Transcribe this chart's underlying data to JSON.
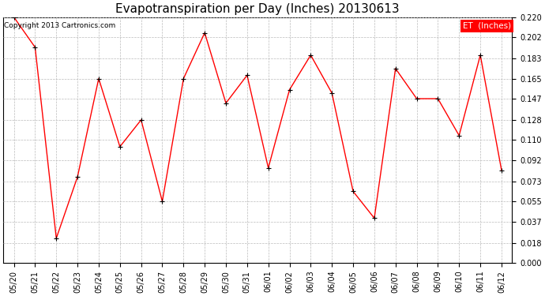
{
  "title": "Evapotranspiration per Day (Inches) 20130613",
  "copyright": "Copyright 2013 Cartronics.com",
  "legend_label": "ET  (Inches)",
  "x_labels": [
    "05/20",
    "05/21",
    "05/22",
    "05/23",
    "05/24",
    "05/25",
    "05/26",
    "05/27",
    "05/28",
    "05/29",
    "05/30",
    "05/31",
    "06/01",
    "06/02",
    "06/03",
    "06/04",
    "06/05",
    "06/06",
    "06/07",
    "06/08",
    "06/09",
    "06/10",
    "06/11",
    "06/12"
  ],
  "y_values": [
    0.22,
    0.193,
    0.022,
    0.077,
    0.165,
    0.104,
    0.128,
    0.055,
    0.165,
    0.206,
    0.143,
    0.168,
    0.085,
    0.155,
    0.186,
    0.152,
    0.064,
    0.04,
    0.174,
    0.147,
    0.147,
    0.114,
    0.186,
    0.083
  ],
  "y_ticks": [
    0.0,
    0.018,
    0.037,
    0.055,
    0.073,
    0.092,
    0.11,
    0.128,
    0.147,
    0.165,
    0.183,
    0.202,
    0.22
  ],
  "line_color": "#FF0000",
  "marker_color": "#000000",
  "background_color": "#FFFFFF",
  "grid_color": "#BBBBBB",
  "legend_bg": "#FF0000",
  "legend_text_color": "#FFFFFF",
  "title_fontsize": 11,
  "copyright_fontsize": 6.5,
  "tick_fontsize": 7,
  "legend_fontsize": 7.5,
  "ylim": [
    0.0,
    0.22
  ],
  "figwidth": 6.9,
  "figheight": 3.75,
  "dpi": 100
}
